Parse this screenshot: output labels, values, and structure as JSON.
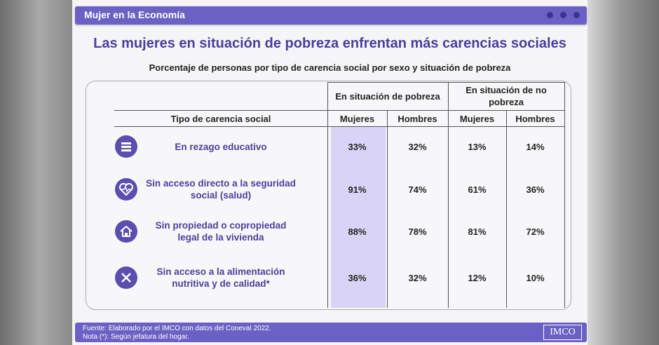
{
  "header": {
    "section": "Mujer en la Economía"
  },
  "title": "Las mujeres en situación de pobreza enfrentan más carencias sociales",
  "subtitle": "Porcentaje de personas por tipo de carencia social por sexo y situación de pobreza",
  "table": {
    "group_headers": [
      "En situación de pobreza",
      "En situación de no pobreza"
    ],
    "columns": [
      "Tipo de carencia social",
      "Mujeres",
      "Hombres",
      "Mujeres",
      "Hombres"
    ],
    "rows": [
      [
        "En rezago educativo",
        "33%",
        "32%",
        "13%",
        "14%"
      ],
      [
        "Sin acceso directo a la seguridad social (salud)",
        "91%",
        "74%",
        "61%",
        "36%"
      ],
      [
        "Sin propiedad o copropiedad legal de la vivienda",
        "88%",
        "78%",
        "81%",
        "72%"
      ],
      [
        "Sin acceso a la alimentación nutritiva y de calidad*",
        "36%",
        "32%",
        "12%",
        "10%"
      ]
    ]
  },
  "footer": {
    "source": "Fuente: Elaborado por el IMCO con datos del Coneval 2022.",
    "note": "Nota (*): Según jefatura del hogar.",
    "logo": "IMCO"
  }
}
